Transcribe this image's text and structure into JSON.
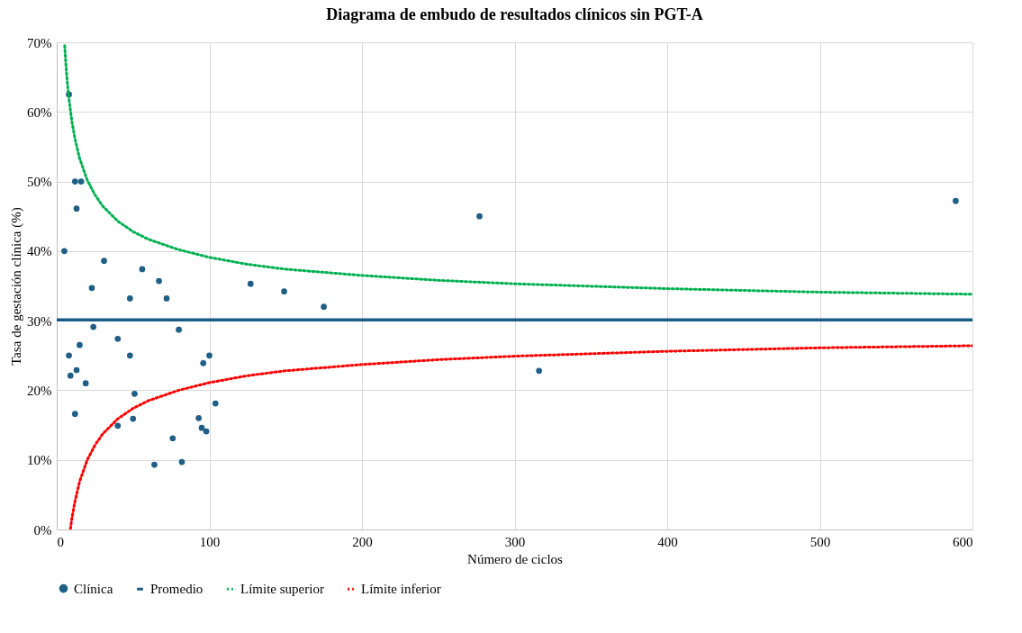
{
  "chart_data": {
    "type": "scatter",
    "title": "Diagrama de embudo de resultados clínicos sin PGT-A",
    "xlabel": "Número de ciclos",
    "ylabel": "Tasa de gestación clínica (%)",
    "xlim": [
      0,
      600
    ],
    "xticks": [
      0,
      100,
      200,
      300,
      400,
      500,
      600
    ],
    "ylim": [
      0,
      70
    ],
    "yticks": [
      {
        "value": 0,
        "label": "0%"
      },
      {
        "value": 10,
        "label": "10%"
      },
      {
        "value": 20,
        "label": "20%"
      },
      {
        "value": 30,
        "label": "30%"
      },
      {
        "value": 40,
        "label": "40%"
      },
      {
        "value": 50,
        "label": "50%"
      },
      {
        "value": 60,
        "label": "60%"
      },
      {
        "value": 70,
        "label": "70%"
      }
    ],
    "grid": true,
    "legend": "bottom",
    "series": [
      {
        "name": "Clínica",
        "marker": "circle",
        "color": "#1f5f86",
        "x": [
          8,
          5,
          12,
          16,
          13,
          8,
          9,
          13,
          15,
          19,
          12,
          31,
          23,
          24,
          40,
          40,
          48,
          48,
          51,
          50,
          56,
          67,
          72,
          64,
          76,
          80,
          82,
          93,
          95,
          98,
          96,
          100,
          104,
          127,
          149,
          175,
          277,
          316,
          589
        ],
        "values": [
          62.5,
          40,
          50,
          50,
          46.1,
          25,
          22.1,
          22.9,
          26.5,
          21,
          16.6,
          38.6,
          34.7,
          29.1,
          27.4,
          14.9,
          33.2,
          25,
          19.5,
          15.9,
          37.4,
          35.7,
          33.2,
          9.3,
          13.1,
          28.7,
          9.7,
          16,
          14.6,
          14.1,
          23.9,
          25,
          18.1,
          35.3,
          34.2,
          32,
          45,
          22.8,
          47.2
        ]
      },
      {
        "name": "Promedio",
        "type": "line",
        "marker": "none",
        "line_style": "solid",
        "color": "#1a5c85",
        "x": [
          0,
          600
        ],
        "values": [
          30.1,
          30.1
        ]
      },
      {
        "name": "Límite superior",
        "type": "line",
        "marker": "none",
        "line_style": "dotted",
        "color": "#00b050",
        "x": [
          5.2,
          6,
          7,
          8,
          10,
          12,
          15,
          20,
          25,
          30,
          40,
          50,
          60,
          80,
          100,
          125,
          150,
          200,
          250,
          300,
          400,
          500,
          600
        ],
        "values": [
          69.5,
          66.8,
          64.1,
          61.9,
          58.5,
          56.1,
          53.3,
          50.2,
          48.1,
          46.5,
          44.3,
          42.8,
          41.7,
          40.2,
          39.1,
          38.1,
          37.4,
          36.5,
          35.8,
          35.3,
          34.6,
          34.1,
          33.8
        ]
      },
      {
        "name": "Límite inferior",
        "type": "line",
        "marker": "none",
        "line_style": "dotted",
        "color": "#ff0000",
        "x": [
          9,
          10,
          12,
          15,
          20,
          25,
          30,
          40,
          50,
          60,
          80,
          100,
          125,
          150,
          200,
          250,
          300,
          400,
          500,
          600
        ],
        "values": [
          0.1,
          1.7,
          4.1,
          6.9,
          10.0,
          12.1,
          13.7,
          15.9,
          17.4,
          18.5,
          20.0,
          21.1,
          22.1,
          22.8,
          23.7,
          24.4,
          24.9,
          25.6,
          26.1,
          26.4
        ]
      }
    ]
  }
}
